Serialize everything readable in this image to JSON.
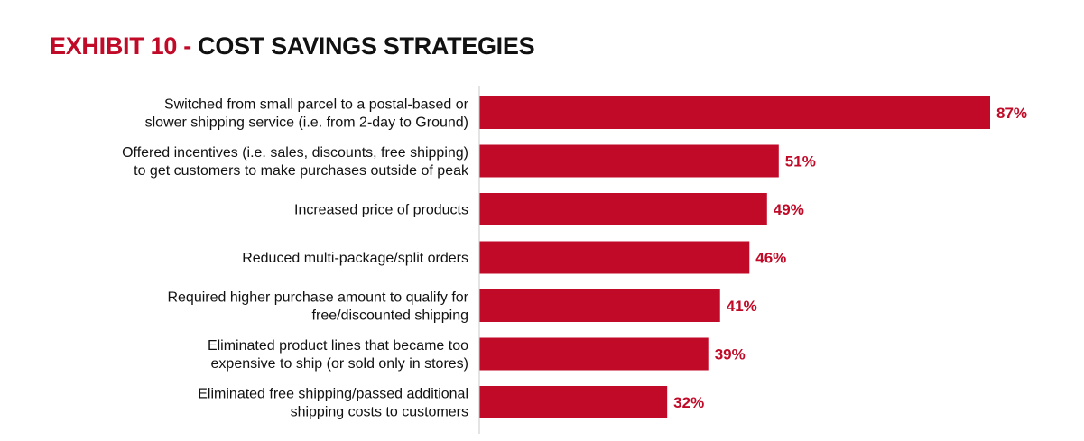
{
  "title": {
    "exhibit": "EXHIBIT 10",
    "separator": "-",
    "text": "COST SAVINGS STRATEGIES"
  },
  "colors": {
    "bar": "#c00a27",
    "accent": "#c00a27",
    "axis": "#c9c9c9",
    "text": "#111111"
  },
  "chart_data": {
    "type": "bar",
    "orientation": "horizontal",
    "title": "EXHIBIT 10 - COST SAVINGS STRATEGIES",
    "xlabel": "",
    "ylabel": "",
    "xlim": [
      0,
      100
    ],
    "grid": false,
    "legend": "none",
    "categories": [
      [
        "Switched from small parcel to a postal-based or",
        "slower shipping service (i.e. from 2-day to Ground)"
      ],
      [
        "Offered incentives (i.e. sales, discounts, free shipping)",
        "to get customers to make purchases outside of peak"
      ],
      [
        "Increased price of products"
      ],
      [
        "Reduced multi-package/split orders"
      ],
      [
        "Required higher purchase amount to qualify for",
        "free/discounted shipping"
      ],
      [
        "Eliminated product lines that became too",
        "expensive to ship (or sold only in stores)"
      ],
      [
        "Eliminated free shipping/passed additional",
        "shipping costs to customers"
      ]
    ],
    "values": [
      87,
      51,
      49,
      46,
      41,
      39,
      32
    ],
    "value_labels": [
      "87%",
      "51%",
      "49%",
      "46%",
      "41%",
      "39%",
      "32%"
    ]
  }
}
